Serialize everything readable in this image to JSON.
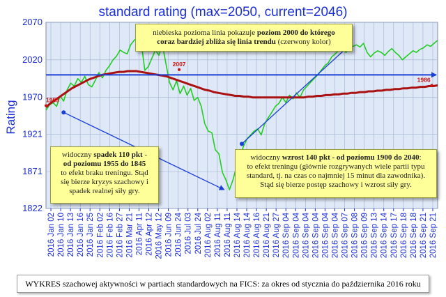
{
  "chart_data": {
    "type": "line",
    "title": "standard rating (max=2050, current=2046)",
    "ylabel": "Rating",
    "xlabel": "",
    "ylim": [
      1822,
      2070
    ],
    "yticks": [
      1822,
      1871,
      1921,
      1970,
      2020,
      2070
    ],
    "xticks": [
      "2016 Jan 02",
      "2016 Jan 10",
      "2016 Jan 13",
      "2016 Jan 16",
      "2016 Jan 25",
      "2016 Feb 02",
      "2016 Feb 16",
      "2016 Feb 27",
      "2016 Mar 21",
      "2016 Apr 11",
      "2016 Apr 12",
      "2016 May 12",
      "2016 Jun 09",
      "2016 Jun 24",
      "2016 Jul 03",
      "2016 Jul 24",
      "2016 Aug 02",
      "2016 Aug 11",
      "2016 Aug 11",
      "2016 Aug 14",
      "2016 Aug 14",
      "2016 Aug 16",
      "2016 Aug 21",
      "2016 Aug 27",
      "2016 Sep 04",
      "2016 Sep 04",
      "2016 Sep 04",
      "2016 Sep 04",
      "2016 Sep 04",
      "2016 Sep 04",
      "2016 Sep 07",
      "2016 Sep 08",
      "2016 Sep 09",
      "2016 Sep 13",
      "2016 Sep 14",
      "2016 Sep 17",
      "2016 Sep 18",
      "2016 Sep 18",
      "2016 Sep 21",
      "2016 Sep 21"
    ],
    "grid": true,
    "series": [
      {
        "role": "rating",
        "color": "#22cc22",
        "values": [
          1953,
          1960,
          1963,
          1958,
          1972,
          1965,
          1980,
          1989,
          1985,
          1995,
          1990,
          1998,
          1987,
          1984,
          1993,
          2003,
          1996,
          2006,
          2012,
          2020,
          2025,
          2033,
          2030,
          2028,
          2040,
          2046,
          2050,
          2043,
          2006,
          2011,
          2022,
          2033,
          2026,
          2040,
          2015,
          1990,
          1980,
          1992,
          1975,
          1985,
          1973,
          1982,
          1966,
          1970,
          1958,
          1935,
          1925,
          1923,
          1900,
          1895,
          1870,
          1860,
          1847,
          1860,
          1878,
          1892,
          1905,
          1915,
          1920,
          1925,
          1928,
          1920,
          1935,
          1943,
          1950,
          1958,
          1962,
          1970,
          1963,
          1973,
          1968,
          1976,
          1970,
          1980,
          1985,
          1990,
          1995,
          2000,
          2006,
          2012,
          2016,
          2024,
          2028,
          2033,
          2035,
          2030,
          2034,
          2038,
          2040,
          2037,
          2042,
          2030,
          2024,
          2029,
          2032,
          2030,
          2026,
          2031,
          2035,
          2030,
          2026,
          2020,
          2024,
          2028,
          2032,
          2030,
          2034,
          2036,
          2040,
          2038,
          2042,
          2046
        ]
      },
      {
        "role": "trend",
        "color": "#aa1111",
        "values": [
          1957,
          1962,
          1966,
          1970,
          1974,
          1978,
          1982,
          1985,
          1988,
          1991,
          1994,
          1996,
          1998,
          2000,
          2001,
          2002,
          2003,
          2004,
          2004,
          2005,
          2005,
          2005,
          2004,
          2003,
          2002,
          2001,
          2000,
          1999,
          1998,
          1996,
          1994,
          1992,
          1990,
          1988,
          1986,
          1984,
          1982,
          1980,
          1979,
          1977,
          1976,
          1975,
          1974,
          1973,
          1972,
          1972,
          1971,
          1971,
          1970,
          1970,
          1970,
          1970,
          1970,
          1970,
          1970,
          1970,
          1970,
          1970,
          1970,
          1970,
          1970,
          1971,
          1971,
          1972,
          1972,
          1973,
          1973,
          1974,
          1974,
          1975,
          1975,
          1976,
          1976,
          1977,
          1977,
          1978,
          1978,
          1979,
          1979,
          1980,
          1980,
          1981,
          1981,
          1982,
          1982,
          1983,
          1983,
          1984,
          1984,
          1985,
          1985,
          1986
        ]
      }
    ],
    "reference_line": {
      "value": 2000,
      "color": "#1a3fd6"
    },
    "point_labels": [
      {
        "text": "1959",
        "x_frac": 0.0,
        "value": 1959,
        "color": "#cc1111"
      },
      {
        "text": "2007",
        "x_frac": 0.34,
        "value": 2007,
        "color": "#cc1111"
      },
      {
        "text": "1986",
        "x_frac": 0.985,
        "value": 1986,
        "color": "#cc1111"
      }
    ],
    "arrows": [
      {
        "from_frac": 0.045,
        "from_value": 1950,
        "to_frac": 0.455,
        "to_value": 1847
      },
      {
        "from_frac": 0.5,
        "from_value": 1908,
        "to_frac": 0.77,
        "to_value": 2037
      }
    ],
    "colors": {
      "title": "#1a2ed6",
      "axis": "#1a2ed6",
      "tick_labels": "#1a2ed6",
      "plot_bg": "#dfe8f7"
    }
  },
  "annotations": {
    "top_note": {
      "line1_a": "niebieska pozioma linia pokazuje ",
      "line1_b": "poziom 2000 do którego",
      "line2_a": "coraz bardziej zbliża się linia trendu",
      "line2_b": " (czerwony kolor)"
    },
    "left_note": {
      "line1_a": "widoczny ",
      "line1_b": "spadek 110 pkt",
      "line1_c": " -",
      "line2": "od poziomu 1955 do 1845",
      "line3": "to efekt braku treningu.  Stąd",
      "line4": "się bierze kryzys szachowy i",
      "line5": "spadek realnej siły gry."
    },
    "right_note": {
      "line1_a": "widoczny ",
      "line1_b": "wzrost 140 pkt - od poziomu 1900 do 2040",
      "line1_c": ":",
      "line2": "to efekt treningu (głównie rozgrywanych wiele partii typu",
      "line3": "standard, tj. na czas co najmniej 15 minut dla zawodnika).",
      "line4": "Stąd się bierze postęp szachowy i wzrost siły gry."
    }
  },
  "caption": "WYKRES szachowej aktywności w partiach standardowych na FICS: za okres od stycznia do października 2016 roku"
}
